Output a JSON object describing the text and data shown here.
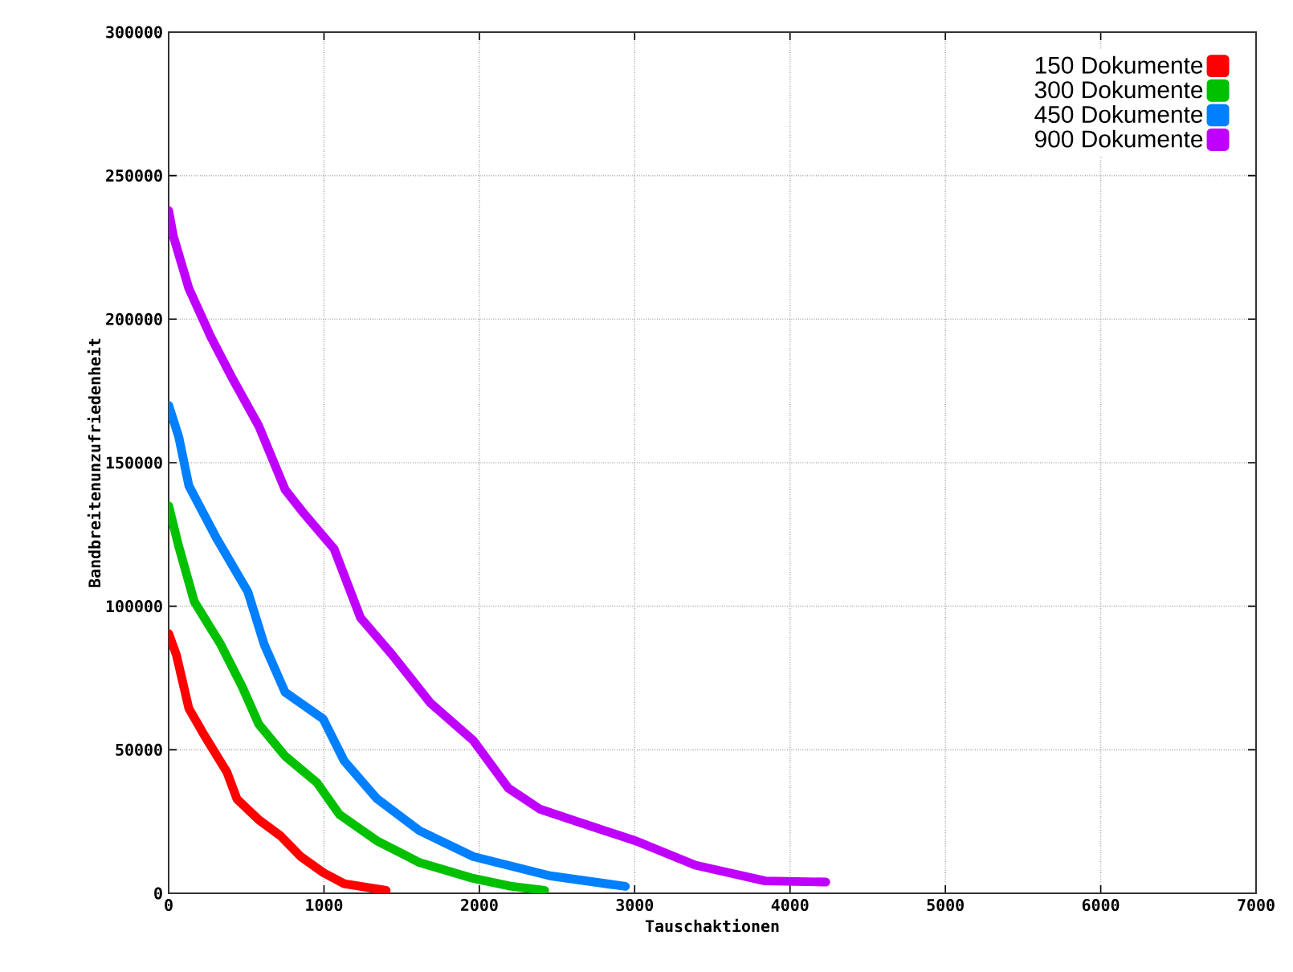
{
  "chart_data": {
    "type": "line",
    "xlabel": "Tauschaktionen",
    "ylabel": "Bandbreitenunzufriedenheit",
    "xlim": [
      0,
      7000
    ],
    "xticks": [
      0,
      1000,
      2000,
      3000,
      4000,
      5000,
      6000,
      7000
    ],
    "ylim": [
      0,
      300000
    ],
    "yticks": [
      0,
      50000,
      100000,
      150000,
      200000,
      250000,
      300000
    ],
    "grid": true,
    "legend": "top right",
    "marker": "none",
    "line_style": "solid",
    "series": [
      {
        "name": "150 Dokumente",
        "color": "#ff0000",
        "x": [
          0,
          50,
          130,
          230,
          375,
          440,
          580,
          720,
          850,
          995,
          1130,
          1400
        ],
        "values": [
          90500,
          83000,
          64400,
          55000,
          42200,
          32800,
          25600,
          20000,
          12800,
          7200,
          3300,
          1000
        ]
      },
      {
        "name": "300 Dokumente",
        "color": "#00c000",
        "x": [
          0,
          60,
          165,
          335,
          475,
          580,
          750,
          955,
          1100,
          1340,
          1615,
          1960,
          2200,
          2420
        ],
        "values": [
          135000,
          121800,
          101600,
          86700,
          71800,
          58900,
          47800,
          38500,
          27400,
          18300,
          10700,
          5200,
          2500,
          1000
        ]
      },
      {
        "name": "450 Dokumente",
        "color": "#0080ff",
        "x": [
          0,
          65,
          130,
          305,
          510,
          615,
          750,
          995,
          1130,
          1340,
          1615,
          1960,
          2455,
          2940
        ],
        "values": [
          170000,
          159000,
          142000,
          124000,
          105000,
          86700,
          70000,
          60700,
          46100,
          33000,
          21800,
          12800,
          6100,
          2400
        ]
      },
      {
        "name": "900 Dokumente",
        "color": "#c000ff",
        "x": [
          0,
          30,
          130,
          270,
          410,
          580,
          750,
          860,
          1065,
          1235,
          1440,
          1685,
          1960,
          2185,
          2390,
          2700,
          3010,
          3390,
          3840,
          4230
        ],
        "values": [
          237800,
          229000,
          210700,
          194000,
          179400,
          162800,
          140600,
          133000,
          120000,
          96000,
          83000,
          66300,
          53300,
          36700,
          29300,
          23700,
          18200,
          9800,
          4300,
          3900
        ]
      }
    ]
  }
}
